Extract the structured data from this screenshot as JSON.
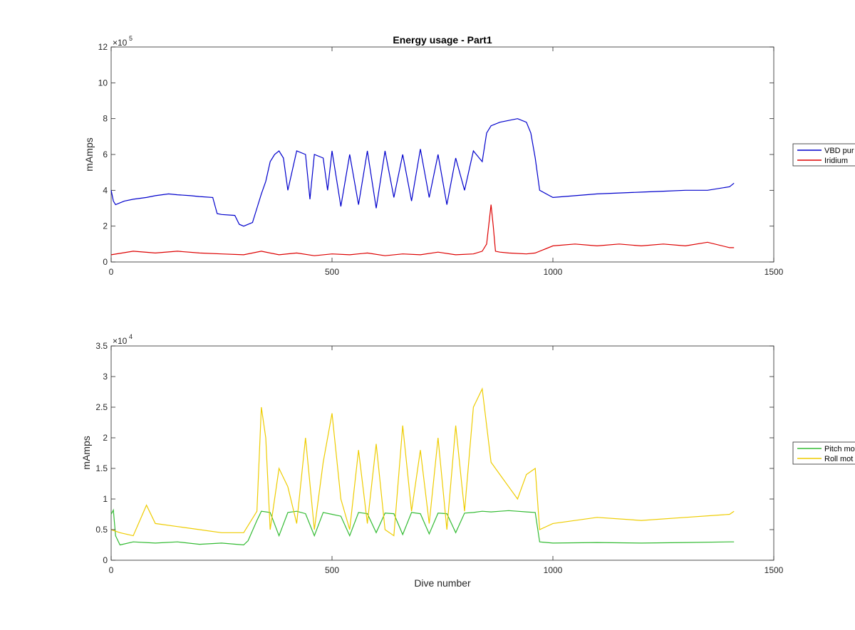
{
  "chart_data": [
    {
      "type": "line",
      "title": "Energy usage - Part1",
      "xlabel": "",
      "ylabel": "mAmps",
      "xlim": [
        0,
        1500
      ],
      "ylim": [
        0,
        1200000
      ],
      "x_ticks": [
        "0",
        "500",
        "1000",
        "1500"
      ],
      "y_ticks": [
        "0",
        "2",
        "4",
        "6",
        "8",
        "10",
        "12"
      ],
      "y_exponent": "×10",
      "y_exponent_power": "5",
      "legend_position": "outside-right",
      "grid": false,
      "series": [
        {
          "name": "VBD pur",
          "color": "#0000cc",
          "x": [
            0,
            5,
            10,
            20,
            30,
            50,
            80,
            100,
            130,
            150,
            180,
            200,
            230,
            240,
            250,
            280,
            290,
            300,
            320,
            330,
            340,
            350,
            360,
            370,
            380,
            390,
            400,
            420,
            440,
            450,
            460,
            480,
            490,
            500,
            520,
            540,
            560,
            580,
            600,
            620,
            640,
            660,
            680,
            700,
            720,
            740,
            760,
            780,
            800,
            820,
            840,
            850,
            860,
            880,
            900,
            920,
            940,
            950,
            960,
            970,
            1000,
            1050,
            1100,
            1150,
            1200,
            1250,
            1300,
            1350,
            1400,
            1410
          ],
          "values": [
            400000,
            340000,
            320000,
            330000,
            340000,
            350000,
            360000,
            370000,
            380000,
            375000,
            370000,
            365000,
            360000,
            270000,
            265000,
            260000,
            210000,
            200000,
            220000,
            300000,
            380000,
            450000,
            560000,
            600000,
            620000,
            580000,
            400000,
            620000,
            600000,
            350000,
            600000,
            580000,
            400000,
            620000,
            310000,
            600000,
            320000,
            620000,
            300000,
            620000,
            360000,
            600000,
            340000,
            630000,
            360000,
            600000,
            320000,
            580000,
            400000,
            620000,
            560000,
            720000,
            760000,
            780000,
            790000,
            800000,
            780000,
            720000,
            580000,
            400000,
            360000,
            370000,
            380000,
            385000,
            390000,
            395000,
            400000,
            400000,
            420000,
            440000
          ]
        },
        {
          "name": "Iridium",
          "color": "#dd0000",
          "x": [
            0,
            50,
            100,
            150,
            200,
            250,
            300,
            340,
            380,
            420,
            460,
            500,
            540,
            580,
            620,
            660,
            700,
            740,
            780,
            820,
            840,
            850,
            860,
            865,
            870,
            880,
            900,
            940,
            960,
            1000,
            1050,
            1100,
            1150,
            1200,
            1250,
            1300,
            1350,
            1400,
            1410
          ],
          "values": [
            40000,
            60000,
            50000,
            60000,
            50000,
            45000,
            40000,
            60000,
            40000,
            50000,
            35000,
            45000,
            40000,
            50000,
            35000,
            45000,
            40000,
            55000,
            40000,
            45000,
            60000,
            100000,
            320000,
            200000,
            60000,
            55000,
            50000,
            45000,
            50000,
            90000,
            100000,
            90000,
            100000,
            90000,
            100000,
            90000,
            110000,
            80000,
            80000
          ]
        }
      ]
    },
    {
      "type": "line",
      "title": "",
      "xlabel": "Dive number",
      "ylabel": "mAmps",
      "xlim": [
        0,
        1500
      ],
      "ylim": [
        0,
        35000
      ],
      "x_ticks": [
        "0",
        "500",
        "1000",
        "1500"
      ],
      "y_ticks": [
        "0",
        "0.5",
        "1",
        "1.5",
        "2",
        "2.5",
        "3",
        "3.5"
      ],
      "y_exponent": "×10",
      "y_exponent_power": "4",
      "legend_position": "outside-right",
      "grid": false,
      "series": [
        {
          "name": "Pitch mo",
          "color": "#33bb33",
          "x": [
            0,
            5,
            10,
            20,
            50,
            100,
            150,
            200,
            250,
            300,
            310,
            330,
            340,
            360,
            380,
            400,
            420,
            440,
            460,
            480,
            500,
            520,
            540,
            560,
            580,
            600,
            620,
            640,
            660,
            680,
            700,
            720,
            740,
            760,
            780,
            800,
            820,
            840,
            860,
            880,
            900,
            920,
            940,
            960,
            970,
            1000,
            1100,
            1200,
            1300,
            1400,
            1410
          ],
          "values": [
            7500,
            8200,
            4000,
            2500,
            3000,
            2800,
            3000,
            2600,
            2800,
            2500,
            3200,
            6500,
            8000,
            7800,
            4000,
            7800,
            8000,
            7600,
            4000,
            7800,
            7500,
            7200,
            4000,
            7800,
            7600,
            4500,
            7700,
            7600,
            4200,
            7800,
            7600,
            4300,
            7700,
            7600,
            4500,
            7700,
            7800,
            8000,
            7900,
            8000,
            8100,
            8000,
            7900,
            7800,
            3000,
            2800,
            2900,
            2800,
            2900,
            3000,
            3000
          ]
        },
        {
          "name": "Roll mot",
          "color": "#eecc00",
          "x": [
            0,
            20,
            50,
            80,
            100,
            150,
            200,
            250,
            300,
            330,
            340,
            350,
            360,
            380,
            400,
            420,
            440,
            460,
            480,
            500,
            520,
            540,
            560,
            580,
            600,
            620,
            640,
            660,
            680,
            700,
            720,
            740,
            760,
            780,
            800,
            820,
            840,
            860,
            880,
            900,
            920,
            940,
            960,
            970,
            1000,
            1100,
            1200,
            1300,
            1400,
            1410
          ],
          "values": [
            5000,
            4500,
            4000,
            9000,
            6000,
            5500,
            5000,
            4500,
            4500,
            8000,
            25000,
            20000,
            5000,
            15000,
            12000,
            6000,
            20000,
            5000,
            16000,
            24000,
            10000,
            5000,
            18000,
            6000,
            19000,
            5000,
            4000,
            22000,
            8000,
            18000,
            6000,
            20000,
            5000,
            22000,
            8000,
            25000,
            28000,
            16000,
            14000,
            12000,
            10000,
            14000,
            15000,
            5000,
            6000,
            7000,
            6500,
            7000,
            7500,
            8000
          ]
        }
      ]
    }
  ]
}
